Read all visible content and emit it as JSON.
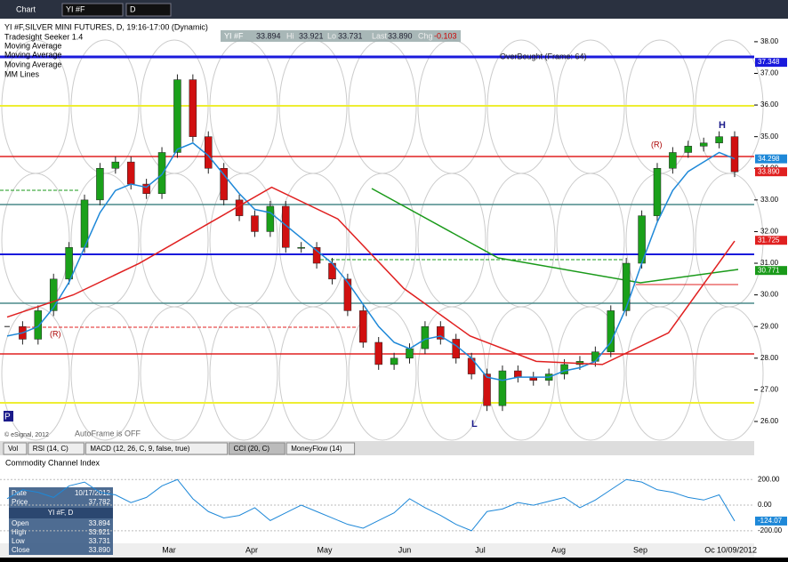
{
  "window": {
    "title": "Chart",
    "symbol": "YI #F",
    "interval": "D"
  },
  "quote_bar": {
    "symbol": "YI #F",
    "open": "33.894",
    "hi_label": "Hi",
    "hi": "33.921",
    "lo_label": "Lo",
    "lo": "33.731",
    "last_label": "Last",
    "last": "33.890",
    "chg_label": "Chg",
    "chg": "-0.103"
  },
  "studies": [
    "YI #F,SILVER MINI FUTURES, D, 19:16-17:00 (Dynamic)",
    "Tradesight Seeker 1.4",
    "Moving Average",
    "Moving Average",
    "Moving Average",
    "MM Lines"
  ],
  "overbought_label": "OverBought (Frame: 64)",
  "autoframe": "AutoFrame is OFF",
  "copyright": "© eSignal, 2012",
  "markers": {
    "r1": "(R)",
    "r2": "(R)",
    "h": "H",
    "l": "L",
    "p": "P"
  },
  "price_axis": {
    "ylim": [
      25.69,
      38.7
    ],
    "ticks": [
      {
        "value": 38,
        "label": "38.00"
      },
      {
        "value": 37,
        "label": "37.00"
      },
      {
        "value": 36,
        "label": "36.00"
      },
      {
        "value": 35,
        "label": "35.00"
      },
      {
        "value": 34,
        "label": "34.00"
      },
      {
        "value": 33,
        "label": "33.00"
      },
      {
        "value": 32,
        "label": "32.00"
      },
      {
        "value": 31,
        "label": "31.00"
      },
      {
        "value": 30,
        "label": "30.00"
      },
      {
        "value": 29,
        "label": "29.00"
      },
      {
        "value": 28,
        "label": "28.00"
      },
      {
        "value": 27,
        "label": "27.00"
      },
      {
        "value": 26,
        "label": "26.00"
      }
    ],
    "flags": [
      {
        "value": 37.348,
        "label": "37.348",
        "color": "#1a1adc"
      },
      {
        "value": 34.298,
        "label": "34.298",
        "color": "#1e88d8"
      },
      {
        "value": 33.89,
        "label": "33.890",
        "color": "#e02020"
      },
      {
        "value": 31.725,
        "label": "31.725",
        "color": "#e02020"
      },
      {
        "value": 30.771,
        "label": "30.771",
        "color": "#1a9a1a"
      }
    ]
  },
  "prices": {
    "closes": [
      29.0,
      28.6,
      29.5,
      30.5,
      31.5,
      33.0,
      34.0,
      34.2,
      33.5,
      33.2,
      34.5,
      36.8,
      35.0,
      34.0,
      33.0,
      32.5,
      32.0,
      32.8,
      31.5,
      31.5,
      31.0,
      30.5,
      29.5,
      28.5,
      27.8,
      28.0,
      28.3,
      29.0,
      28.6,
      28.0,
      27.5,
      26.5,
      27.6,
      27.4,
      27.3,
      27.5,
      27.8,
      27.9,
      28.2,
      29.5,
      31.0,
      32.5,
      34.0,
      34.5,
      34.7,
      34.8,
      35.0,
      33.89
    ],
    "ma_fast": [
      28.7,
      28.8,
      29.0,
      29.6,
      30.4,
      31.5,
      32.6,
      33.3,
      33.5,
      33.4,
      33.8,
      34.6,
      34.8,
      34.4,
      33.8,
      33.2,
      32.7,
      32.6,
      32.2,
      31.8,
      31.4,
      31.0,
      30.4,
      29.7,
      29.0,
      28.5,
      28.3,
      28.6,
      28.7,
      28.4,
      28.0,
      27.4,
      27.3,
      27.4,
      27.4,
      27.4,
      27.6,
      27.7,
      27.9,
      28.5,
      29.6,
      31.0,
      32.3,
      33.3,
      33.9,
      34.2,
      34.5,
      34.3
    ],
    "ma_slow": [
      29.3,
      30.0,
      31.0,
      32.2,
      33.4,
      32.4,
      30.2,
      28.7,
      27.9,
      27.8,
      28.8,
      31.7
    ]
  },
  "months": [
    "Mar",
    "Apr",
    "May",
    "Jun",
    "Jul",
    "Aug",
    "Sep",
    "Oc"
  ],
  "last_date": "10/09/2012",
  "tabs": [
    "Vol",
    "RSI (14, C)",
    "MACD (12, 26, C, 9, false, true)",
    "CCI (20, C)",
    "MoneyFlow (14)"
  ],
  "cci": {
    "title": "Commodity Channel Index",
    "ylim": [
      -298,
      389
    ],
    "ticks": [
      {
        "value": 200,
        "label": "200.00"
      },
      {
        "value": 0,
        "label": "0.00"
      },
      {
        "value": -200,
        "label": "-200.00"
      }
    ],
    "values": [
      50,
      120,
      100,
      60,
      150,
      180,
      100,
      80,
      20,
      60,
      150,
      200,
      50,
      -50,
      -100,
      -80,
      -20,
      -120,
      -60,
      0,
      -50,
      -100,
      -150,
      -180,
      -120,
      -60,
      50,
      -20,
      -80,
      -150,
      -200,
      -50,
      -30,
      20,
      0,
      30,
      60,
      -20,
      40,
      120,
      200,
      180,
      120,
      100,
      60,
      40,
      80,
      -124.07
    ],
    "last_label": "-124.07"
  },
  "data_window": {
    "rows": [
      [
        "Date",
        "10/17/2012"
      ],
      [
        "Price",
        "37.782"
      ]
    ],
    "header": "YI #F, D",
    "ohlc": [
      [
        "Open",
        "33.894"
      ],
      [
        "High",
        "33.921"
      ],
      [
        "Low",
        "33.731"
      ],
      [
        "Close",
        "33.890"
      ]
    ]
  }
}
